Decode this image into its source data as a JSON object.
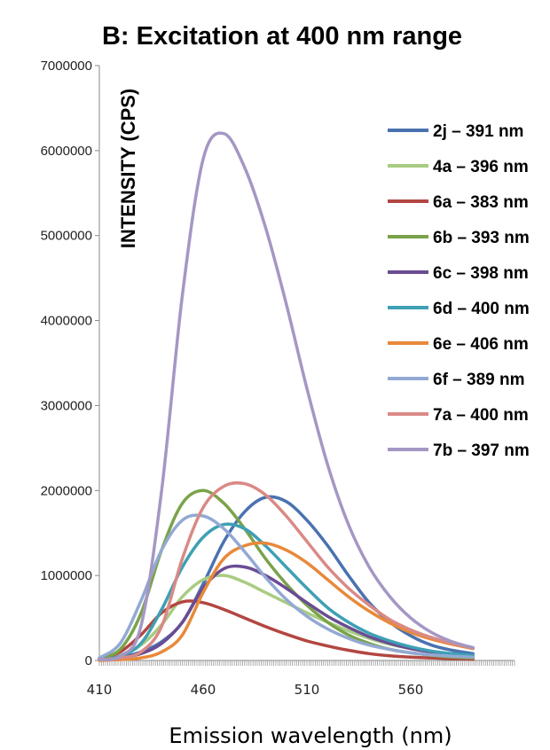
{
  "chart_data": {
    "type": "line",
    "title": "B: Excitation at 400 nm range",
    "xlabel": "Emission wavelength (nm)",
    "ylabel": "INTENSITY (CPS)",
    "xlim": [
      410,
      610
    ],
    "ylim": [
      0,
      7000000
    ],
    "xticks": [
      "410",
      "460",
      "510",
      "560"
    ],
    "yticks": [
      "0",
      "1000000",
      "2000000",
      "3000000",
      "4000000",
      "5000000",
      "6000000",
      "7000000"
    ],
    "legend_position": "top-right",
    "series": [
      {
        "name": "2j  – 391 nm",
        "color": "#4a72b0",
        "x": [
          410,
          420,
          430,
          440,
          450,
          460,
          470,
          480,
          490,
          500,
          510,
          520,
          530,
          540,
          550,
          560,
          570,
          580,
          590
        ],
        "y": [
          20000,
          40000,
          100000,
          220000,
          450000,
          900000,
          1400000,
          1750000,
          1920000,
          1870000,
          1650000,
          1350000,
          1000000,
          680000,
          450000,
          290000,
          180000,
          120000,
          80000
        ]
      },
      {
        "name": "4a – 396 nm",
        "color": "#a8cc82",
        "x": [
          410,
          420,
          430,
          440,
          450,
          460,
          470,
          480,
          490,
          500,
          510,
          520,
          530,
          540,
          550,
          560,
          570,
          580,
          590
        ],
        "y": [
          20000,
          60000,
          180000,
          420000,
          750000,
          950000,
          1000000,
          920000,
          800000,
          680000,
          560000,
          450000,
          350000,
          260000,
          190000,
          140000,
          100000,
          70000,
          50000
        ]
      },
      {
        "name": "6a – 383 nm",
        "color": "#b34642",
        "x": [
          410,
          420,
          430,
          440,
          450,
          460,
          470,
          480,
          490,
          500,
          510,
          520,
          530,
          540,
          550,
          560,
          570,
          580,
          590
        ],
        "y": [
          20000,
          100000,
          300000,
          560000,
          690000,
          680000,
          600000,
          500000,
          400000,
          310000,
          230000,
          170000,
          120000,
          80000,
          55000,
          40000,
          30000,
          20000,
          15000
        ]
      },
      {
        "name": "6b – 393 nm",
        "color": "#7aa34a",
        "x": [
          410,
          420,
          430,
          440,
          450,
          460,
          470,
          480,
          490,
          500,
          510,
          520,
          530,
          540,
          550,
          560,
          570,
          580,
          590
        ],
        "y": [
          30000,
          130000,
          550000,
          1300000,
          1850000,
          2000000,
          1850000,
          1550000,
          1200000,
          900000,
          650000,
          450000,
          300000,
          200000,
          130000,
          90000,
          60000,
          40000,
          30000
        ]
      },
      {
        "name": "6c – 398 nm",
        "color": "#6a4c93",
        "x": [
          410,
          420,
          430,
          440,
          450,
          460,
          470,
          480,
          490,
          500,
          510,
          520,
          530,
          540,
          550,
          560,
          570,
          580,
          590
        ],
        "y": [
          10000,
          30000,
          80000,
          200000,
          450000,
          850000,
          1080000,
          1100000,
          1000000,
          850000,
          680000,
          520000,
          390000,
          280000,
          200000,
          140000,
          100000,
          70000,
          50000
        ]
      },
      {
        "name": "6d – 400 nm",
        "color": "#3ea0b4",
        "x": [
          410,
          420,
          430,
          440,
          450,
          460,
          470,
          480,
          490,
          500,
          510,
          520,
          530,
          540,
          550,
          560,
          570,
          580,
          590
        ],
        "y": [
          10000,
          50000,
          200000,
          600000,
          1100000,
          1450000,
          1600000,
          1550000,
          1350000,
          1100000,
          850000,
          620000,
          450000,
          320000,
          230000,
          160000,
          110000,
          80000,
          60000
        ]
      },
      {
        "name": "6e – 406 nm",
        "color": "#e8893a",
        "x": [
          410,
          420,
          430,
          440,
          450,
          460,
          470,
          480,
          490,
          500,
          510,
          520,
          530,
          540,
          550,
          560,
          570,
          580,
          590
        ],
        "y": [
          0,
          10000,
          30000,
          100000,
          300000,
          800000,
          1200000,
          1350000,
          1380000,
          1300000,
          1150000,
          950000,
          750000,
          580000,
          440000,
          330000,
          250000,
          190000,
          140000
        ]
      },
      {
        "name": "6f  – 389 nm",
        "color": "#93a9d4",
        "x": [
          410,
          420,
          430,
          440,
          450,
          460,
          470,
          480,
          490,
          500,
          510,
          520,
          530,
          540,
          550,
          560,
          570,
          580,
          590
        ],
        "y": [
          30000,
          200000,
          700000,
          1300000,
          1650000,
          1700000,
          1550000,
          1280000,
          980000,
          720000,
          520000,
          370000,
          260000,
          180000,
          130000,
          90000,
          65000,
          50000,
          40000
        ]
      },
      {
        "name": "7a – 400 nm",
        "color": "#d98a86",
        "x": [
          410,
          420,
          430,
          440,
          450,
          460,
          470,
          480,
          490,
          500,
          510,
          520,
          530,
          540,
          550,
          560,
          570,
          580,
          590
        ],
        "y": [
          10000,
          30000,
          100000,
          400000,
          1200000,
          1800000,
          2050000,
          2080000,
          1950000,
          1700000,
          1400000,
          1100000,
          850000,
          650000,
          480000,
          360000,
          270000,
          200000,
          150000
        ]
      },
      {
        "name": "7b – 397 nm",
        "color": "#a597c4",
        "x": [
          410,
          420,
          430,
          440,
          450,
          460,
          470,
          480,
          490,
          500,
          510,
          520,
          530,
          540,
          550,
          560,
          570,
          580,
          590
        ],
        "y": [
          10000,
          50000,
          400000,
          2000000,
          4300000,
          5900000,
          6200000,
          5800000,
          5100000,
          4200000,
          3200000,
          2300000,
          1600000,
          1100000,
          750000,
          500000,
          330000,
          220000,
          150000
        ]
      }
    ]
  }
}
